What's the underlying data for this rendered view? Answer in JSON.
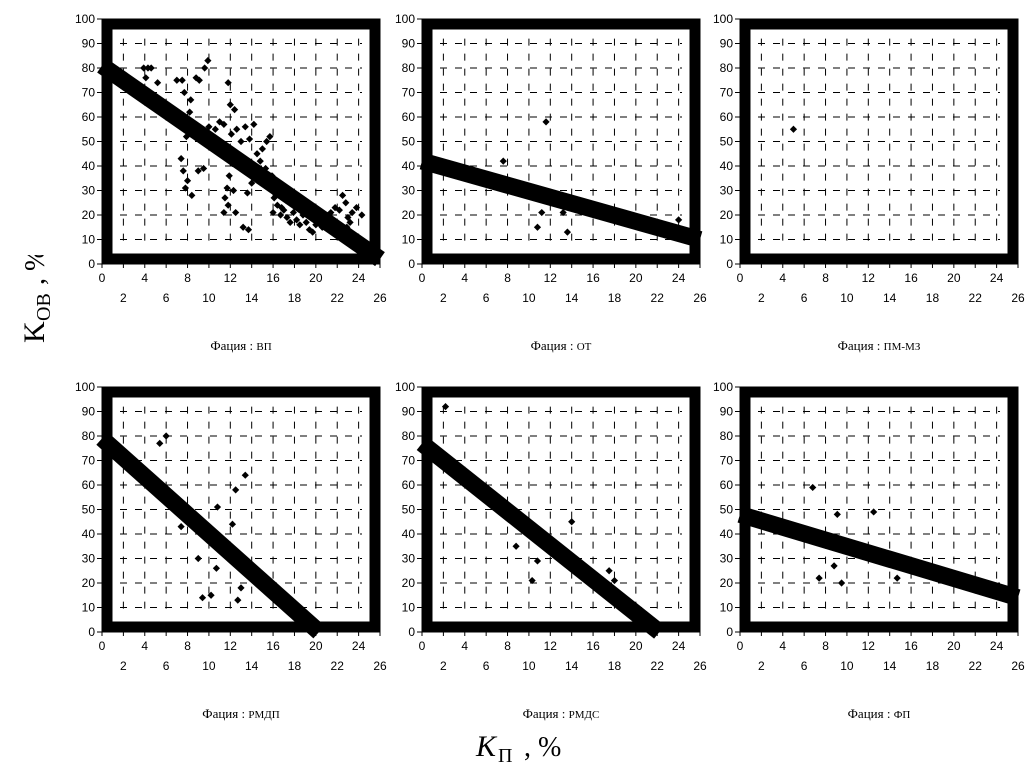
{
  "y_axis_label": {
    "main": "K",
    "sub": "ОВ",
    "unit": ", %"
  },
  "x_axis_label": {
    "main": "K",
    "sub": "П",
    "unit": ", %"
  },
  "chart_data": [
    {
      "type": "scatter",
      "title_prefix": "Фация : ",
      "title": "ВП",
      "xlim": [
        0,
        26
      ],
      "ylim": [
        0,
        100
      ],
      "x_ticks_top": [
        "0",
        "4",
        "8",
        "12",
        "16",
        "20",
        "24"
      ],
      "x_ticks_bottom": [
        "2",
        "6",
        "10",
        "14",
        "18",
        "22",
        "26"
      ],
      "y_ticks": [
        "0",
        "10",
        "20",
        "30",
        "40",
        "50",
        "60",
        "70",
        "80",
        "90",
        "100"
      ],
      "trend_line": {
        "x": [
          0,
          26
        ],
        "y": [
          81,
          2
        ]
      },
      "points": [
        [
          3.9,
          80
        ],
        [
          4.3,
          80
        ],
        [
          4.6,
          80
        ],
        [
          4.1,
          76
        ],
        [
          5.2,
          74
        ],
        [
          5.0,
          67
        ],
        [
          5.6,
          62
        ],
        [
          6.0,
          62
        ],
        [
          7.0,
          75
        ],
        [
          7.5,
          75
        ],
        [
          7.7,
          70
        ],
        [
          8.3,
          67
        ],
        [
          8.8,
          76
        ],
        [
          9.1,
          75
        ],
        [
          9.6,
          80
        ],
        [
          9.9,
          83
        ],
        [
          8.2,
          62
        ],
        [
          8.5,
          56
        ],
        [
          7.9,
          52
        ],
        [
          7.4,
          43
        ],
        [
          7.6,
          38
        ],
        [
          8.0,
          34
        ],
        [
          7.8,
          31
        ],
        [
          8.4,
          28
        ],
        [
          9.0,
          38
        ],
        [
          9.5,
          39
        ],
        [
          10.0,
          56
        ],
        [
          10.6,
          55
        ],
        [
          11.0,
          58
        ],
        [
          11.4,
          57
        ],
        [
          11.8,
          74
        ],
        [
          12.0,
          65
        ],
        [
          12.4,
          63
        ],
        [
          12.6,
          55
        ],
        [
          12.1,
          53
        ],
        [
          11.6,
          46
        ],
        [
          12.2,
          41
        ],
        [
          11.9,
          36
        ],
        [
          11.7,
          31
        ],
        [
          12.3,
          30
        ],
        [
          11.5,
          27
        ],
        [
          11.8,
          24
        ],
        [
          12.5,
          21
        ],
        [
          11.4,
          21
        ],
        [
          13.0,
          50
        ],
        [
          13.4,
          56
        ],
        [
          13.8,
          51
        ],
        [
          14.2,
          57
        ],
        [
          14.5,
          45
        ],
        [
          14.8,
          42
        ],
        [
          14.0,
          33
        ],
        [
          13.6,
          29
        ],
        [
          13.2,
          15
        ],
        [
          13.7,
          14
        ],
        [
          15.0,
          47
        ],
        [
          15.4,
          50
        ],
        [
          15.7,
          52
        ],
        [
          15.3,
          39
        ],
        [
          15.9,
          36
        ],
        [
          16.1,
          27
        ],
        [
          16.4,
          24
        ],
        [
          16.0,
          21
        ],
        [
          16.7,
          20
        ],
        [
          17.0,
          22
        ],
        [
          17.3,
          19
        ],
        [
          17.6,
          17
        ],
        [
          17.9,
          21
        ],
        [
          18.2,
          18
        ],
        [
          18.5,
          16
        ],
        [
          18.8,
          20
        ],
        [
          19.1,
          17
        ],
        [
          19.4,
          14
        ],
        [
          19.7,
          13
        ],
        [
          20.0,
          16
        ],
        [
          20.3,
          18
        ],
        [
          20.6,
          15
        ],
        [
          21.0,
          17
        ],
        [
          21.4,
          21
        ],
        [
          21.8,
          23
        ],
        [
          22.2,
          22
        ],
        [
          22.5,
          28
        ],
        [
          22.8,
          25
        ],
        [
          22.1,
          16
        ],
        [
          22.6,
          14
        ],
        [
          23.0,
          19
        ],
        [
          23.4,
          21
        ],
        [
          23.8,
          23
        ],
        [
          24.3,
          20
        ],
        [
          23.2,
          17
        ],
        [
          22.9,
          15
        ],
        [
          17.2,
          26
        ],
        [
          16.8,
          23
        ],
        [
          18.0,
          24
        ],
        [
          19.9,
          19
        ]
      ]
    },
    {
      "type": "scatter",
      "title_prefix": "Фация : ",
      "title": "ОТ",
      "xlim": [
        0,
        26
      ],
      "ylim": [
        0,
        100
      ],
      "x_ticks_top": [
        "0",
        "4",
        "8",
        "12",
        "16",
        "20",
        "24"
      ],
      "x_ticks_bottom": [
        "2",
        "6",
        "10",
        "14",
        "18",
        "22",
        "26"
      ],
      "y_ticks": [
        "0",
        "10",
        "20",
        "30",
        "40",
        "50",
        "60",
        "70",
        "80",
        "90",
        "100"
      ],
      "trend_line": {
        "x": [
          0,
          26
        ],
        "y": [
          42,
          10
        ]
      },
      "points": [
        [
          7.6,
          42
        ],
        [
          11.6,
          58
        ],
        [
          11.2,
          21
        ],
        [
          10.8,
          15
        ],
        [
          13.2,
          21
        ],
        [
          13.6,
          13
        ],
        [
          24.0,
          18
        ]
      ]
    },
    {
      "type": "scatter",
      "title_prefix": "Фация : ",
      "title": "ПМ-МЗ",
      "xlim": [
        0,
        26
      ],
      "ylim": [
        0,
        100
      ],
      "x_ticks_top": [
        "0",
        "4",
        "8",
        "12",
        "16",
        "20",
        "24"
      ],
      "x_ticks_bottom": [
        "2",
        "6",
        "10",
        "14",
        "18",
        "22",
        "26"
      ],
      "y_ticks": [
        "0",
        "10",
        "20",
        "30",
        "40",
        "50",
        "60",
        "70",
        "80",
        "90",
        "100"
      ],
      "trend_line": null,
      "points": [
        [
          5.0,
          55
        ]
      ]
    },
    {
      "type": "scatter",
      "title_prefix": "Фация : ",
      "title": "РМДП",
      "xlim": [
        0,
        26
      ],
      "ylim": [
        0,
        100
      ],
      "x_ticks_top": [
        "0",
        "4",
        "8",
        "12",
        "16",
        "20",
        "24"
      ],
      "x_ticks_bottom": [
        "2",
        "6",
        "10",
        "14",
        "18",
        "22",
        "26"
      ],
      "y_ticks": [
        "0",
        "10",
        "20",
        "30",
        "40",
        "50",
        "60",
        "70",
        "80",
        "90",
        "100"
      ],
      "trend_line": {
        "x": [
          0,
          20.3
        ],
        "y": [
          79,
          0
        ]
      },
      "points": [
        [
          5.4,
          77
        ],
        [
          6.0,
          80
        ],
        [
          7.4,
          43
        ],
        [
          9.0,
          30
        ],
        [
          9.4,
          14
        ],
        [
          10.2,
          15
        ],
        [
          10.7,
          26
        ],
        [
          10.8,
          51
        ],
        [
          12.2,
          44
        ],
        [
          12.5,
          58
        ],
        [
          12.7,
          13
        ],
        [
          13.0,
          18
        ],
        [
          13.4,
          64
        ]
      ]
    },
    {
      "type": "scatter",
      "title_prefix": "Фация : ",
      "title": "РМДС",
      "xlim": [
        0,
        26
      ],
      "ylim": [
        0,
        100
      ],
      "x_ticks_top": [
        "0",
        "4",
        "8",
        "12",
        "16",
        "20",
        "24"
      ],
      "x_ticks_bottom": [
        "2",
        "6",
        "10",
        "14",
        "18",
        "22",
        "26"
      ],
      "y_ticks": [
        "0",
        "10",
        "20",
        "30",
        "40",
        "50",
        "60",
        "70",
        "80",
        "90",
        "100"
      ],
      "trend_line": {
        "x": [
          0,
          22.2
        ],
        "y": [
          77,
          0
        ]
      },
      "points": [
        [
          2.2,
          92
        ],
        [
          8.8,
          35
        ],
        [
          10.3,
          21
        ],
        [
          10.8,
          29
        ],
        [
          14.0,
          45
        ],
        [
          17.5,
          25
        ],
        [
          18.0,
          21
        ]
      ]
    },
    {
      "type": "scatter",
      "title_prefix": "Фация : ",
      "title": "ФП",
      "xlim": [
        0,
        26
      ],
      "ylim": [
        0,
        100
      ],
      "x_ticks_top": [
        "0",
        "4",
        "8",
        "12",
        "16",
        "20",
        "24"
      ],
      "x_ticks_bottom": [
        "2",
        "6",
        "10",
        "14",
        "18",
        "22",
        "26"
      ],
      "y_ticks": [
        "0",
        "10",
        "20",
        "30",
        "40",
        "50",
        "60",
        "70",
        "80",
        "90",
        "100"
      ],
      "trend_line": {
        "x": [
          0,
          26
        ],
        "y": [
          48,
          14
        ]
      },
      "points": [
        [
          6.8,
          59
        ],
        [
          7.4,
          22
        ],
        [
          8.8,
          27
        ],
        [
          9.1,
          48
        ],
        [
          9.5,
          20
        ],
        [
          12.5,
          49
        ],
        [
          14.7,
          22
        ]
      ]
    }
  ]
}
